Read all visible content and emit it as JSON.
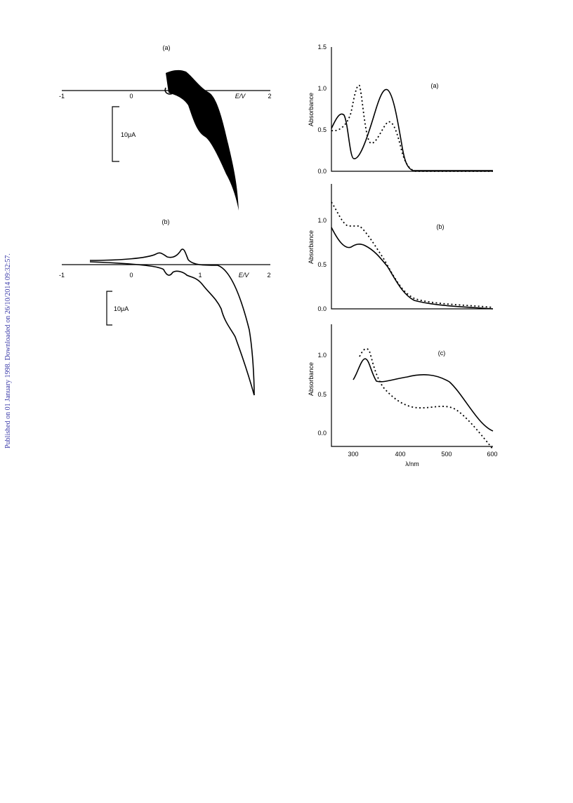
{
  "side_note": "Published on 01 January 1998. Downloaded on 26/10/2014 09:32:57.",
  "cv_a": {
    "label": "(a)",
    "ticks": [
      "-1",
      "0",
      "2"
    ],
    "axis_label": "E/V",
    "scale": "10μA"
  },
  "cv_b": {
    "label": "(b)",
    "ticks": [
      "-1",
      "0",
      "1",
      "2"
    ],
    "axis_label": "E/V",
    "scale": "10μA"
  },
  "spectra": {
    "y_label": "Absorbance",
    "x_label": "λ/nm",
    "x_ticks": [
      "300",
      "400",
      "500",
      "600"
    ],
    "panel_a": {
      "label": "(a)",
      "y_ticks": [
        "0.0",
        "0.5",
        "1.0",
        "1.5"
      ]
    },
    "panel_b": {
      "label": "(b)",
      "y_ticks": [
        "0.0",
        "0.5",
        "1.0"
      ]
    },
    "panel_c": {
      "label": "(c)",
      "y_ticks": [
        "0.0",
        "0.5",
        "1.0"
      ]
    }
  }
}
